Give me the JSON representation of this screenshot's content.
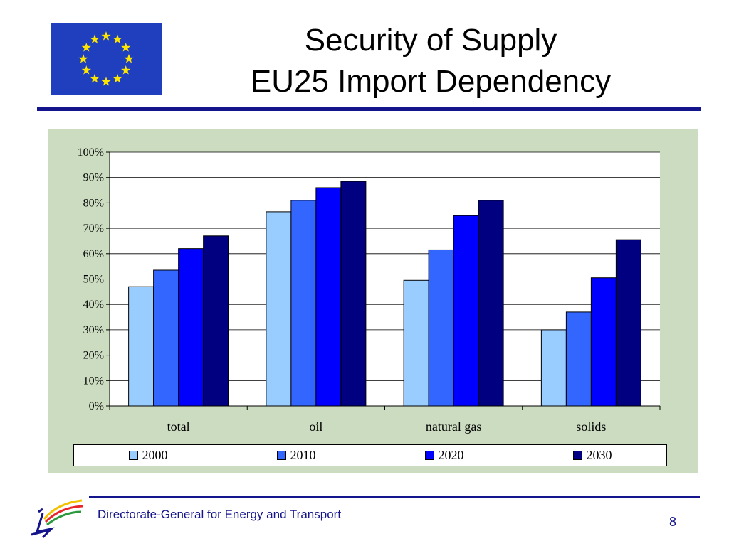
{
  "slide": {
    "title_line1": "Security of Supply",
    "title_line2": "EU25 Import Dependency",
    "footer": "Directorate-General for Energy and Transport",
    "page_number": "8",
    "colors": {
      "rule": "#14148c",
      "panel": "#ccdcc0",
      "flag": "#1f3fbf",
      "star": "#ffe600"
    }
  },
  "chart_data": {
    "type": "bar",
    "title": "",
    "xlabel": "",
    "ylabel": "",
    "categories": [
      "total",
      "oil",
      "natural gas",
      "solids"
    ],
    "ylim": [
      0,
      100
    ],
    "yticks": [
      "0%",
      "10%",
      "20%",
      "30%",
      "40%",
      "50%",
      "60%",
      "70%",
      "80%",
      "90%",
      "100%"
    ],
    "grid": true,
    "legend_position": "bottom",
    "series": [
      {
        "name": "2000",
        "color": "#99ccff",
        "values": [
          47,
          76.5,
          49.5,
          30
        ]
      },
      {
        "name": "2010",
        "color": "#3366ff",
        "values": [
          53.5,
          81,
          61.5,
          37
        ]
      },
      {
        "name": "2020",
        "color": "#0000ff",
        "values": [
          62,
          86,
          75,
          50.5
        ]
      },
      {
        "name": "2030",
        "color": "#000080",
        "values": [
          67,
          88.5,
          81,
          65.5
        ]
      }
    ]
  }
}
